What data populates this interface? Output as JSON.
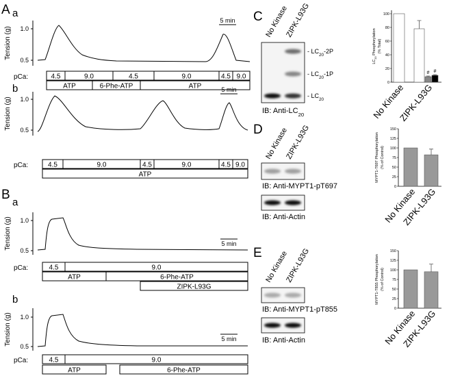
{
  "panel_letters": {
    "A": "A",
    "B": "B"
  },
  "traces": [
    {
      "label": "a",
      "yaxis": "Tension (g)",
      "ytick_top": "1.0",
      "ytick_bottom": "0.5",
      "scale": "5 min",
      "pca": "pCa:",
      "rows": [
        [
          "4.5",
          "9.0",
          "4.5",
          "9.0",
          "4.5",
          "9.0"
        ],
        [
          "ATP",
          "6-Phe-ATP",
          "ATP"
        ]
      ]
    },
    {
      "label": "b",
      "yaxis": "Tension (g)",
      "ytick_top": "1.0",
      "ytick_bottom": "0.5",
      "scale": "5 min",
      "pca": "pCa:",
      "rows": [
        [
          "4.5",
          "9.0",
          "4.5",
          "9.0",
          "4.5",
          "9.0"
        ],
        [
          "ATP"
        ]
      ]
    },
    {
      "label": "a",
      "yaxis": "Tension (g)",
      "ytick_top": "1.0",
      "ytick_bottom": "0.5",
      "scale": "5 min",
      "pca": "pCa:",
      "rows": [
        [
          "4.5",
          "9.0"
        ],
        [
          "ATP",
          "6-Phe-ATP"
        ],
        [
          "ZIPK-L93G"
        ]
      ]
    },
    {
      "label": "b",
      "yaxis": "Tension (g)",
      "ytick_top": "1.0",
      "ytick_bottom": "0.5",
      "scale": "5 min",
      "pca": "pCa:",
      "rows": [
        [
          "4.5",
          "9.0"
        ],
        [
          "ATP",
          "6-Phe-ATP"
        ]
      ]
    }
  ],
  "blots": [
    {
      "label": "C",
      "lanes": [
        "No Kinase",
        "ZIPK-L93G"
      ],
      "band_labels": [
        {
          "pre": "- LC",
          "sub": "20",
          "post": "-2P"
        },
        {
          "pre": "- LC",
          "sub": "20",
          "post": "-1P"
        },
        {
          "pre": "- LC",
          "sub": "20"
        }
      ],
      "captions": [
        {
          "pre": "IB: Anti-LC",
          "sub": "20"
        }
      ],
      "chart": {
        "ylabel": {
          "line1": {
            "pre": "LC",
            "sub": "20",
            "post": " Phosphorylation"
          },
          "line2": "(% Total)"
        },
        "ylim": [
          0,
          105
        ],
        "yticks": [
          0,
          20,
          40,
          60,
          80,
          100
        ],
        "categories": [
          "No Kinase",
          "ZIPK-L93G"
        ],
        "bars": [
          {
            "value": 100,
            "color": "#ffffff"
          },
          {
            "value": 78,
            "error": 12,
            "color": "#ffffff"
          },
          {
            "value": 8,
            "error": 1,
            "color": "#888888",
            "annotation": "#"
          },
          {
            "value": 10,
            "error": 1,
            "color": "#000000",
            "annotation": "#"
          }
        ]
      }
    },
    {
      "label": "D",
      "lanes": [
        "No Kinase",
        "ZIPK-L93G"
      ],
      "band_labels": [],
      "captions": [
        "IB: Anti-MYPT1-pT697",
        "IB: Anti-Actin"
      ],
      "chart": {
        "ylabel": {
          "line1": "MYPT1-T697 Phosphorylation",
          "line2": "(% of Control)"
        },
        "ylim": [
          0,
          150
        ],
        "yticks": [
          0,
          25,
          50,
          75,
          100,
          125,
          150
        ],
        "categories": [
          "No Kinase",
          "ZIPK-L93G"
        ],
        "bars": [
          {
            "value": 100,
            "color": "#999999"
          },
          {
            "value": 82,
            "error": 15,
            "color": "#999999"
          }
        ]
      }
    },
    {
      "label": "E",
      "lanes": [
        "No Kinase",
        "ZIPK-L93G"
      ],
      "band_labels": [],
      "captions": [
        "IB: Anti-MYPT1-pT855",
        "IB: Anti-Actin"
      ],
      "chart": {
        "ylabel": {
          "line1": "MYPT1-T855 Phosphorylation",
          "line2": "(% of Control)"
        },
        "ylim": [
          0,
          150
        ],
        "yticks": [
          0,
          25,
          50,
          75,
          100,
          125,
          150
        ],
        "categories": [
          "No Kinase",
          "ZIPK-L93G"
        ],
        "bars": [
          {
            "value": 100,
            "color": "#999999"
          },
          {
            "value": 95,
            "error": 20,
            "color": "#999999"
          }
        ]
      }
    }
  ]
}
